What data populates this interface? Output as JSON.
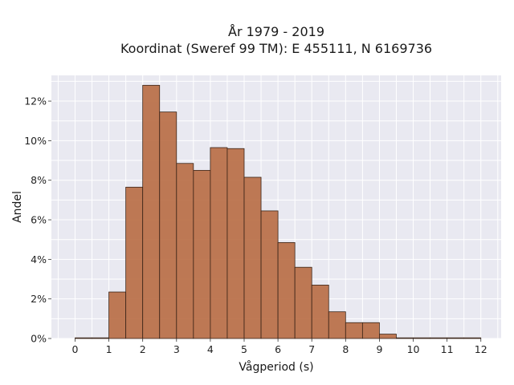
{
  "chart_data": {
    "type": "bar",
    "title_line1": "År 1979 - 2019",
    "title_line2": "Koordinat (Sweref 99 TM): E 455111, N 6169736",
    "xlabel": "Vågperiod (s)",
    "ylabel": "Andel",
    "bin_width": 0.5,
    "bin_starts": [
      0,
      0.5,
      1,
      1.5,
      2,
      2.5,
      3,
      3.5,
      4,
      4.5,
      5,
      5.5,
      6,
      6.5,
      7,
      7.5,
      8,
      8.5,
      9,
      9.5,
      10,
      10.5,
      11,
      11.5
    ],
    "values": [
      0.0,
      0.0,
      2.35,
      7.65,
      12.8,
      11.45,
      8.85,
      8.5,
      9.65,
      9.6,
      8.15,
      6.45,
      4.85,
      3.6,
      2.7,
      1.35,
      0.8,
      0.8,
      0.22,
      0.02,
      0.02,
      0.02,
      0.02,
      0.02
    ],
    "xlim": [
      -0.7,
      12.6
    ],
    "ylim": [
      0,
      13.3
    ],
    "xticks": [
      0,
      1,
      2,
      3,
      4,
      5,
      6,
      7,
      8,
      9,
      10,
      11,
      12
    ],
    "xtick_labels": [
      "0",
      "1",
      "2",
      "3",
      "4",
      "5",
      "6",
      "7",
      "8",
      "9",
      "10",
      "11",
      "12"
    ],
    "yticks": [
      0,
      2,
      4,
      6,
      8,
      10,
      12
    ],
    "ytick_labels": [
      "0%",
      "2%",
      "4%",
      "6%",
      "8%",
      "10%",
      "12%"
    ],
    "grid": true,
    "background_color": "#e9e9f1",
    "bar_color": "#b86c43"
  }
}
